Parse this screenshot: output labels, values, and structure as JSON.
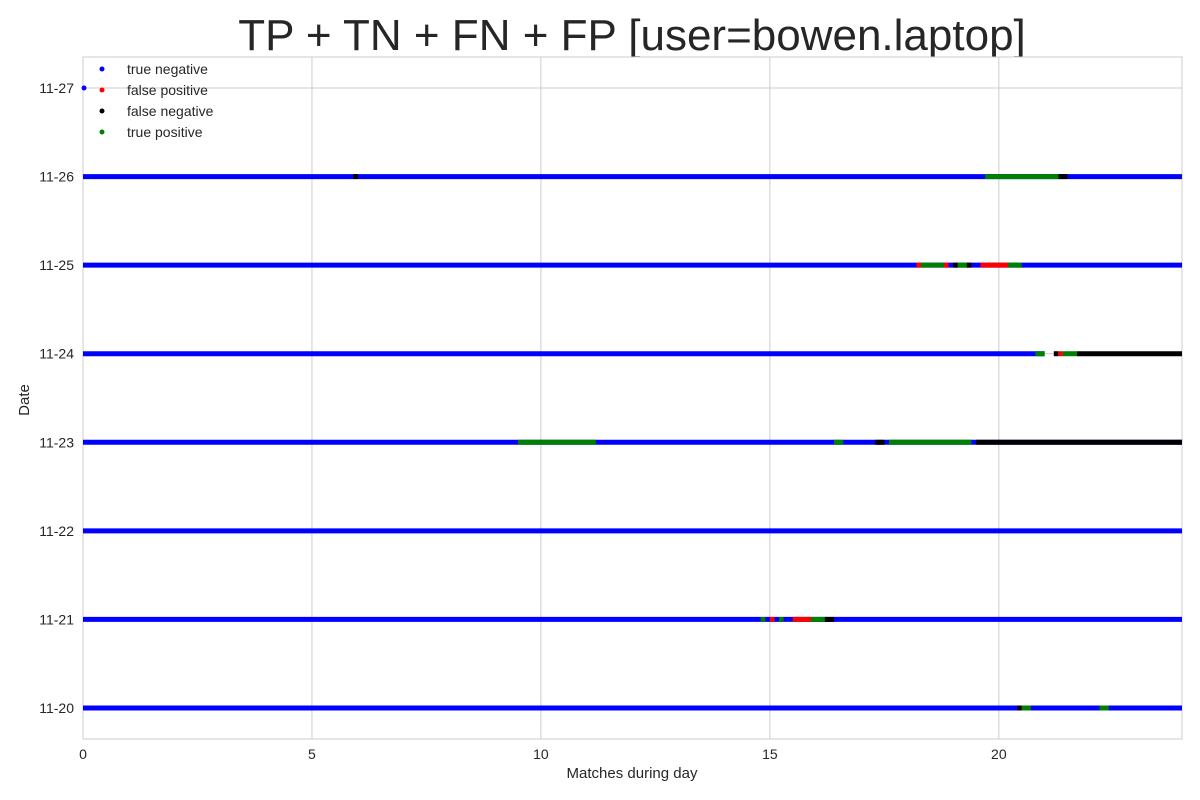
{
  "chart_data": {
    "type": "scatter",
    "title": "TP + TN + FN + FP [user=bowen.laptop]",
    "xlabel": "Matches during day",
    "ylabel": "Date",
    "xlim": [
      0,
      24
    ],
    "x_ticks": [
      0,
      5,
      10,
      15,
      20
    ],
    "categories": [
      "11-20",
      "11-21",
      "11-22",
      "11-23",
      "11-24",
      "11-25",
      "11-26",
      "11-27"
    ],
    "grid": true,
    "legend_position": "top-left",
    "series": [
      {
        "name": "true negative",
        "color": "#0000ff",
        "segments": [
          {
            "date": "11-20",
            "x": [
              0,
              24
            ]
          },
          {
            "date": "11-21",
            "x": [
              0,
              24
            ]
          },
          {
            "date": "11-22",
            "x": [
              0,
              24
            ]
          },
          {
            "date": "11-23",
            "x": [
              0,
              24
            ]
          },
          {
            "date": "11-24",
            "x": [
              0,
              21
            ]
          },
          {
            "date": "11-25",
            "x": [
              0,
              24
            ]
          },
          {
            "date": "11-26",
            "x": [
              0,
              24
            ]
          }
        ],
        "points": [
          {
            "date": "11-27",
            "x": 0
          }
        ]
      },
      {
        "name": "false positive",
        "color": "#ff0000",
        "segments": [
          {
            "date": "11-21",
            "x": [
              15.0,
              15.1
            ]
          },
          {
            "date": "11-21",
            "x": [
              15.5,
              15.9
            ]
          },
          {
            "date": "11-25",
            "x": [
              18.2,
              18.3
            ]
          },
          {
            "date": "11-25",
            "x": [
              18.8,
              18.9
            ]
          },
          {
            "date": "11-25",
            "x": [
              19.6,
              20.2
            ]
          },
          {
            "date": "11-24",
            "x": [
              21.3,
              21.4
            ]
          }
        ],
        "points": []
      },
      {
        "name": "false negative",
        "color": "#000000",
        "segments": [
          {
            "date": "11-23",
            "x": [
              17.3,
              17.5
            ]
          },
          {
            "date": "11-23",
            "x": [
              19.5,
              24
            ]
          },
          {
            "date": "11-24",
            "x": [
              21.2,
              21.3
            ]
          },
          {
            "date": "11-24",
            "x": [
              21.7,
              24
            ]
          },
          {
            "date": "11-25",
            "x": [
              19.0,
              19.1
            ]
          },
          {
            "date": "11-25",
            "x": [
              19.3,
              19.4
            ]
          },
          {
            "date": "11-26",
            "x": [
              5.9,
              6.0
            ]
          },
          {
            "date": "11-26",
            "x": [
              21.3,
              21.5
            ]
          },
          {
            "date": "11-21",
            "x": [
              16.2,
              16.4
            ]
          },
          {
            "date": "11-20",
            "x": [
              20.4,
              20.5
            ]
          }
        ],
        "points": []
      },
      {
        "name": "true positive",
        "color": "#008000",
        "segments": [
          {
            "date": "11-23",
            "x": [
              9.5,
              11.2
            ]
          },
          {
            "date": "11-23",
            "x": [
              16.4,
              16.6
            ]
          },
          {
            "date": "11-23",
            "x": [
              17.6,
              19.4
            ]
          },
          {
            "date": "11-24",
            "x": [
              20.8,
              21.0
            ]
          },
          {
            "date": "11-24",
            "x": [
              21.4,
              21.7
            ]
          },
          {
            "date": "11-25",
            "x": [
              18.3,
              18.8
            ]
          },
          {
            "date": "11-25",
            "x": [
              19.1,
              19.3
            ]
          },
          {
            "date": "11-25",
            "x": [
              20.2,
              20.5
            ]
          },
          {
            "date": "11-26",
            "x": [
              19.7,
              21.3
            ]
          },
          {
            "date": "11-21",
            "x": [
              14.8,
              14.9
            ]
          },
          {
            "date": "11-21",
            "x": [
              15.2,
              15.3
            ]
          },
          {
            "date": "11-21",
            "x": [
              15.9,
              16.2
            ]
          },
          {
            "date": "11-20",
            "x": [
              20.5,
              20.7
            ]
          },
          {
            "date": "11-20",
            "x": [
              22.2,
              22.4
            ]
          }
        ],
        "points": []
      }
    ]
  }
}
